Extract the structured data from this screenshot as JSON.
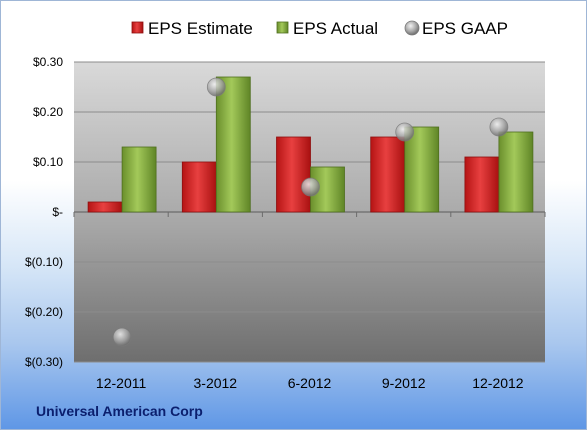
{
  "footer": {
    "company": "Universal American Corp"
  },
  "colors": {
    "estimate": "#d21f1f",
    "actual": "#7ea43a",
    "gaap": "#a7a7a7"
  },
  "chart_data": {
    "type": "bar",
    "categories": [
      "12-2011",
      "3-2012",
      "6-2012",
      "9-2012",
      "12-2012"
    ],
    "series": [
      {
        "name": "EPS Estimate",
        "type": "bar",
        "values": [
          0.02,
          0.1,
          0.15,
          0.15,
          0.11
        ]
      },
      {
        "name": "EPS Actual",
        "type": "bar",
        "values": [
          0.13,
          0.27,
          0.09,
          0.17,
          0.16
        ]
      },
      {
        "name": "EPS GAAP",
        "type": "scatter",
        "values": [
          -0.25,
          0.25,
          0.05,
          0.16,
          0.17
        ]
      }
    ],
    "ylim": [
      -0.3,
      0.3
    ],
    "yticks": [
      {
        "value": 0.3,
        "label": "$0.30"
      },
      {
        "value": 0.2,
        "label": "$0.20"
      },
      {
        "value": 0.1,
        "label": "$0.10"
      },
      {
        "value": 0,
        "label": "$-"
      },
      {
        "value": -0.1,
        "label": "$(0.10)"
      },
      {
        "value": -0.2,
        "label": "$(0.20)"
      },
      {
        "value": -0.3,
        "label": "$(0.30)"
      }
    ],
    "grid": true,
    "legend_position": "top"
  }
}
